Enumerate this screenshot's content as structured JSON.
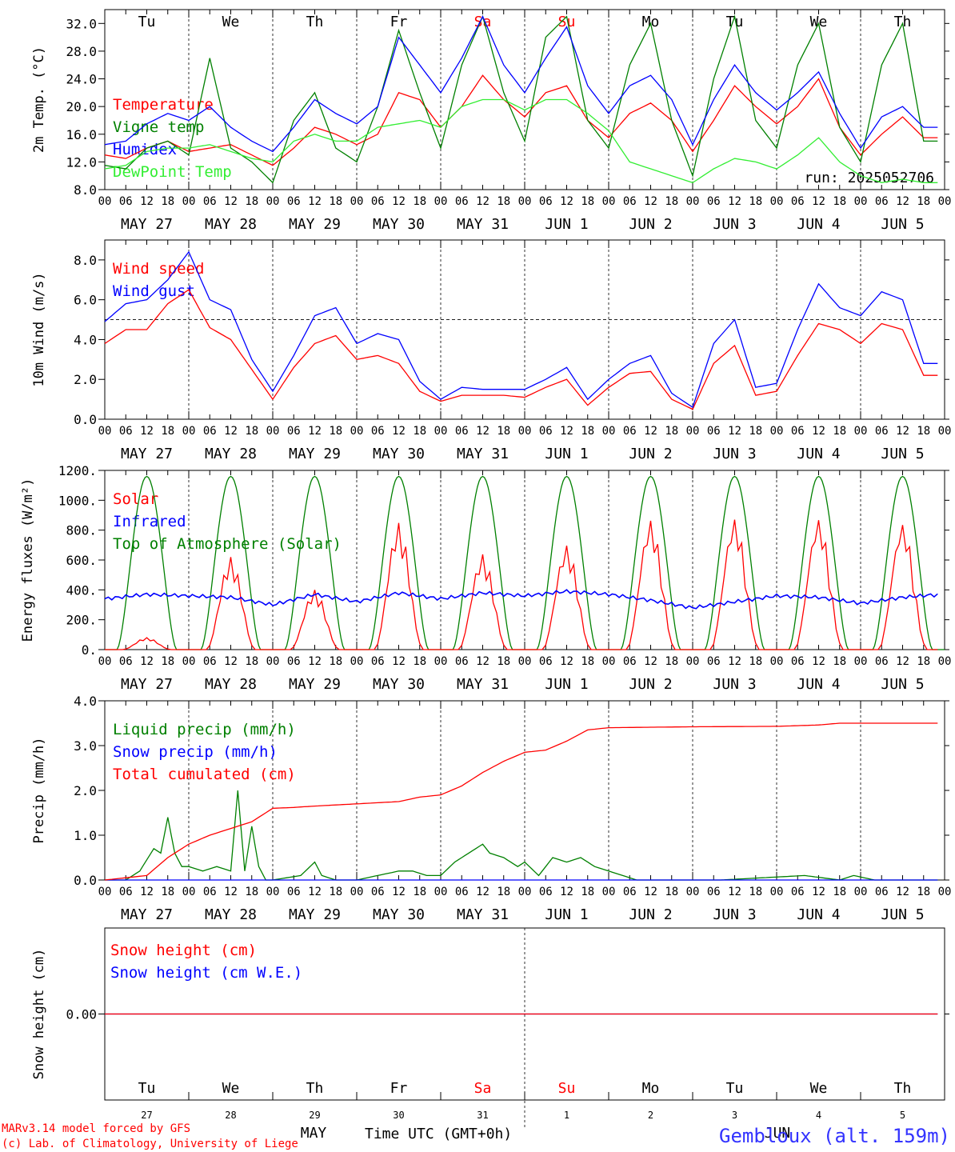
{
  "meteogram": {
    "run_label": "run: 2025052706",
    "hours": [
      "00",
      "06",
      "12",
      "18"
    ],
    "day_labels": [
      "Tu",
      "We",
      "Th",
      "Fr",
      "Sa",
      "Su",
      "Mo",
      "Tu",
      "We",
      "Th"
    ],
    "day_colors": [
      "#000000",
      "#000000",
      "#000000",
      "#000000",
      "#ff0000",
      "#ff0000",
      "#000000",
      "#000000",
      "#000000",
      "#000000"
    ],
    "dates": [
      "MAY 27",
      "MAY 28",
      "MAY 29",
      "MAY 30",
      "MAY 31",
      "JUN  1",
      "JUN  2",
      "JUN  3",
      "JUN  4",
      "JUN  5"
    ],
    "date_numbers": [
      "27",
      "28",
      "29",
      "30",
      "31",
      "1",
      "2",
      "3",
      "4",
      "5"
    ],
    "month_left": "MAY",
    "month_right": "JUN",
    "time_axis_label": "Time UTC (GMT+0h)",
    "credit_line1": "MARv3.14 model forced by GFS",
    "credit_line2": "(c) Lab. of Climatology, University of Liege",
    "location": "Gembloux (alt. 159m)"
  },
  "chart_data": [
    {
      "type": "line",
      "ylabel": "2m Temp. (°C)",
      "ylim": [
        8,
        34
      ],
      "yticks": [
        "8.0",
        "12.0",
        "16.0",
        "20.0",
        "24.0",
        "28.0",
        "32.0"
      ],
      "x_unit": "hours since 2025-05-27 00 UTC",
      "legend": [
        "Temperature",
        "Vigne temp",
        "Humidex",
        "DewPoint Temp"
      ],
      "series": [
        {
          "name": "Temperature",
          "color": "#ff0000",
          "x": [
            0,
            6,
            12,
            18,
            24,
            30,
            36,
            42,
            48,
            54,
            60,
            66,
            72,
            78,
            84,
            90,
            96,
            102,
            108,
            114,
            120,
            126,
            132,
            138,
            144,
            150,
            156,
            162,
            168,
            174,
            180,
            186,
            192,
            198,
            204,
            210,
            216,
            222,
            228,
            234
          ],
          "values": [
            13,
            12.5,
            14,
            15,
            13.5,
            14,
            14.5,
            13,
            11.5,
            14,
            17,
            16,
            14.5,
            16,
            22,
            21,
            17,
            20,
            24.5,
            21,
            18.5,
            22,
            23,
            18,
            15.5,
            19,
            20.5,
            18,
            13.5,
            18,
            23,
            20,
            17.5,
            20,
            24,
            17,
            13,
            16,
            18.5,
            15.5
          ]
        },
        {
          "name": "Vigne temp",
          "color": "#008000",
          "x": [
            0,
            6,
            12,
            18,
            24,
            30,
            36,
            42,
            48,
            54,
            60,
            66,
            72,
            78,
            84,
            90,
            96,
            102,
            108,
            114,
            120,
            126,
            132,
            138,
            144,
            150,
            156,
            162,
            168,
            174,
            180,
            186,
            192,
            198,
            204,
            210,
            216,
            222,
            228,
            234
          ],
          "values": [
            11.5,
            11,
            14,
            15,
            13,
            27,
            14,
            12,
            9,
            18,
            22,
            14,
            12,
            20,
            31,
            22,
            14,
            26,
            33,
            22,
            15,
            30,
            33,
            18,
            14,
            26,
            32,
            18,
            10,
            24,
            33,
            18,
            14,
            26,
            32,
            17,
            12,
            26,
            32,
            15
          ]
        },
        {
          "name": "Humidex",
          "color": "#0000ff",
          "x": [
            0,
            6,
            12,
            18,
            24,
            30,
            36,
            42,
            48,
            54,
            60,
            66,
            72,
            78,
            84,
            90,
            96,
            102,
            108,
            114,
            120,
            126,
            132,
            138,
            144,
            150,
            156,
            162,
            168,
            174,
            180,
            186,
            192,
            198,
            204,
            210,
            216,
            222,
            228,
            234
          ],
          "values": [
            14.5,
            15,
            17.5,
            19,
            18,
            20,
            17,
            15,
            13.5,
            17,
            21,
            19,
            17.5,
            20,
            30,
            26,
            22,
            27,
            33,
            26,
            22,
            27,
            31.5,
            23,
            19,
            23,
            24.5,
            21,
            14.5,
            21,
            26,
            22,
            19.5,
            22,
            25,
            19,
            14,
            18.5,
            20,
            17
          ]
        },
        {
          "name": "DewPoint Temp",
          "color": "#33ee33",
          "x": [
            0,
            6,
            12,
            18,
            24,
            30,
            36,
            42,
            48,
            54,
            60,
            66,
            72,
            78,
            84,
            90,
            96,
            102,
            108,
            114,
            120,
            126,
            132,
            138,
            144,
            150,
            156,
            162,
            168,
            174,
            180,
            186,
            192,
            198,
            204,
            210,
            216,
            222,
            228,
            234
          ],
          "values": [
            11,
            11.5,
            13.5,
            14,
            14,
            14.5,
            13.5,
            12.5,
            12,
            15,
            16,
            15,
            15,
            17,
            17.5,
            18,
            17,
            20,
            21,
            21,
            19.5,
            21,
            21,
            19,
            16.5,
            12,
            11,
            10,
            9,
            11,
            12.5,
            12,
            11,
            13,
            15.5,
            12,
            10,
            9,
            9.5,
            9
          ]
        }
      ]
    },
    {
      "type": "line",
      "ylabel": "10m Wind (m/s)",
      "ylim": [
        0,
        9
      ],
      "yticks": [
        "0.0",
        "2.0",
        "4.0",
        "6.0",
        "8.0"
      ],
      "ref_line": 5,
      "legend": [
        "Wind speed",
        "Wind gust"
      ],
      "series": [
        {
          "name": "Wind speed",
          "color": "#ff0000",
          "x": [
            0,
            6,
            12,
            18,
            24,
            30,
            36,
            42,
            48,
            54,
            60,
            66,
            72,
            78,
            84,
            90,
            96,
            102,
            108,
            114,
            120,
            126,
            132,
            138,
            144,
            150,
            156,
            162,
            168,
            174,
            180,
            186,
            192,
            198,
            204,
            210,
            216,
            222,
            228,
            234
          ],
          "values": [
            3.8,
            4.5,
            4.5,
            5.8,
            6.5,
            4.6,
            4,
            2.5,
            1,
            2.6,
            3.8,
            4.2,
            3.0,
            3.2,
            2.8,
            1.4,
            0.9,
            1.2,
            1.2,
            1.2,
            1.1,
            1.6,
            2.0,
            0.7,
            1.6,
            2.3,
            2.4,
            1.0,
            0.5,
            2.8,
            3.7,
            1.2,
            1.4,
            3.2,
            4.8,
            4.5,
            3.8,
            4.8,
            4.5,
            2.2
          ]
        },
        {
          "name": "Wind gust",
          "color": "#0000ff",
          "x": [
            0,
            6,
            12,
            18,
            24,
            30,
            36,
            42,
            48,
            54,
            60,
            66,
            72,
            78,
            84,
            90,
            96,
            102,
            108,
            114,
            120,
            126,
            132,
            138,
            144,
            150,
            156,
            162,
            168,
            174,
            180,
            186,
            192,
            198,
            204,
            210,
            216,
            222,
            228,
            234
          ],
          "values": [
            4.9,
            5.8,
            6.0,
            7.0,
            8.4,
            6.0,
            5.5,
            3.0,
            1.4,
            3.2,
            5.2,
            5.6,
            3.8,
            4.3,
            4.0,
            1.9,
            1.0,
            1.6,
            1.5,
            1.5,
            1.5,
            2.0,
            2.6,
            1.0,
            2.0,
            2.8,
            3.2,
            1.3,
            0.6,
            3.8,
            5.0,
            1.6,
            1.8,
            4.5,
            6.8,
            5.6,
            5.2,
            6.4,
            6.0,
            2.8
          ]
        }
      ]
    },
    {
      "type": "line",
      "ylabel": "Energy fluxes (W/m²)",
      "ylim": [
        0,
        1200
      ],
      "yticks": [
        "0.",
        "200.",
        "400.",
        "600.",
        "800.",
        "1000.",
        "1200."
      ],
      "legend": [
        "Solar",
        "Infrared",
        "Top of Atmosphere (Solar)"
      ],
      "series": [
        {
          "name": "Solar",
          "color": "#ff0000",
          "peaks": [
            80,
            620,
            400,
            850,
            640,
            700,
            870,
            880,
            880,
            850
          ]
        },
        {
          "name": "Infrared",
          "color": "#0000ff",
          "x": [
            0,
            12,
            24,
            36,
            48,
            60,
            72,
            84,
            96,
            108,
            120,
            132,
            144,
            156,
            168,
            180,
            192,
            204,
            216,
            228,
            236
          ],
          "values": [
            340,
            370,
            360,
            350,
            300,
            370,
            320,
            380,
            340,
            380,
            360,
            390,
            370,
            330,
            280,
            320,
            360,
            350,
            310,
            350,
            365
          ]
        },
        {
          "name": "Top of Atmosphere (Solar)",
          "color": "#008000",
          "peak": 1160
        }
      ]
    },
    {
      "type": "line",
      "ylabel": "Precip (mm/h)",
      "ylim": [
        0,
        4
      ],
      "yticks": [
        "0.0",
        "1.0",
        "2.0",
        "3.0",
        "4.0"
      ],
      "legend": [
        "Liquid precip (mm/h)",
        "Snow precip (mm/h)",
        "Total cumulated (cm)"
      ],
      "series": [
        {
          "name": "Liquid precip (mm/h)",
          "color": "#008000",
          "x": [
            0,
            6,
            10,
            14,
            16,
            18,
            20,
            22,
            24,
            28,
            32,
            36,
            38,
            40,
            42,
            44,
            46,
            48,
            56,
            60,
            62,
            66,
            72,
            84,
            88,
            92,
            96,
            100,
            104,
            108,
            110,
            114,
            118,
            120,
            124,
            128,
            132,
            136,
            140,
            144,
            148,
            152,
            160,
            176,
            200,
            210,
            214,
            220,
            236
          ],
          "values": [
            0,
            0,
            0.2,
            0.7,
            0.6,
            1.4,
            0.6,
            0.3,
            0.3,
            0.2,
            0.3,
            0.2,
            2.0,
            0.2,
            1.2,
            0.3,
            0,
            0,
            0.1,
            0.4,
            0.1,
            0,
            0,
            0.2,
            0.2,
            0.1,
            0.1,
            0.4,
            0.6,
            0.8,
            0.6,
            0.5,
            0.3,
            0.4,
            0.1,
            0.5,
            0.4,
            0.5,
            0.3,
            0.2,
            0.1,
            0,
            0,
            0,
            0.1,
            0,
            0.1,
            0,
            0
          ]
        },
        {
          "name": "Snow precip (mm/h)",
          "color": "#0000ff",
          "x": [
            0,
            236
          ],
          "values": [
            0,
            0
          ]
        },
        {
          "name": "Total cumulated (cm)",
          "color": "#ff0000",
          "x": [
            0,
            12,
            18,
            24,
            30,
            36,
            42,
            48,
            54,
            60,
            72,
            84,
            90,
            96,
            102,
            108,
            114,
            120,
            126,
            132,
            138,
            144,
            168,
            192,
            204,
            210,
            236
          ],
          "values": [
            0,
            0.1,
            0.5,
            0.8,
            1.0,
            1.15,
            1.3,
            1.6,
            1.62,
            1.65,
            1.7,
            1.75,
            1.85,
            1.9,
            2.1,
            2.4,
            2.65,
            2.85,
            2.9,
            3.1,
            3.35,
            3.4,
            3.42,
            3.43,
            3.46,
            3.5,
            3.5
          ]
        }
      ]
    },
    {
      "type": "line",
      "ylabel": "Snow height (cm)",
      "yticks": [
        "0.00"
      ],
      "legend": [
        "Snow height (cm)",
        "Snow height (cm W.E.)"
      ],
      "series": [
        {
          "name": "Snow height (cm)",
          "color": "#ff0000",
          "x": [
            0,
            236
          ],
          "values": [
            0,
            0
          ]
        },
        {
          "name": "Snow height (cm W.E.)",
          "color": "#0000ff",
          "x": [
            0,
            236
          ],
          "values": [
            0,
            0
          ]
        }
      ]
    }
  ]
}
